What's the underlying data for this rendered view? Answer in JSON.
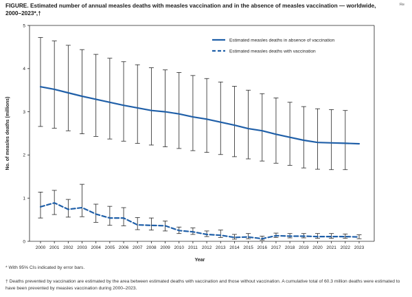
{
  "figure": {
    "title": "FIGURE. Estimated number of annual measles deaths with measles vaccination and in the absence of measles vaccination — worldwide, 2000–2023*,†",
    "corner_text": "Re",
    "footnote_1": "* With 95% CIs indicated by error bars.",
    "footnote_2": "† Deaths prevented by vaccination are estimated by the area between estimated deaths with vaccination and those without vaccination. A cumulative total of 60.3 million deaths were estimated to have been prevented by measles vaccination during 2000–2023."
  },
  "colors": {
    "series": "#1f5fa8",
    "axis": "#222222",
    "error_bar": "#222222"
  },
  "chart_data": {
    "type": "line",
    "title": "",
    "xlabel": "Year",
    "ylabel": "No. of measles deaths (millions)",
    "ylim": [
      0,
      5
    ],
    "yticks": [
      "0",
      "1",
      "2",
      "3",
      "4",
      "5"
    ],
    "grid": false,
    "legend_position": "top-right",
    "x": [
      "2000",
      "2001",
      "2002",
      "2003",
      "2004",
      "2005",
      "2006",
      "2007",
      "2008",
      "2009",
      "2010",
      "2011",
      "2012",
      "2013",
      "2014",
      "2015",
      "2016",
      "2017",
      "2018",
      "2019",
      "2020",
      "2021",
      "2022",
      "2023"
    ],
    "series": [
      {
        "name": "Estimated measles deaths in absence of vaccination",
        "style": "solid",
        "values": [
          3.58,
          3.52,
          3.44,
          3.36,
          3.29,
          3.22,
          3.15,
          3.09,
          3.03,
          3.0,
          2.95,
          2.88,
          2.83,
          2.76,
          2.69,
          2.61,
          2.56,
          2.48,
          2.41,
          2.34,
          2.29,
          2.28,
          2.27,
          2.26
        ],
        "lower": [
          2.66,
          2.62,
          2.56,
          2.49,
          2.43,
          2.37,
          2.32,
          2.27,
          2.23,
          2.19,
          2.15,
          2.1,
          2.06,
          2.01,
          1.96,
          1.91,
          1.86,
          1.81,
          1.76,
          1.7,
          1.67,
          1.66,
          1.66,
          null
        ],
        "upper": [
          4.72,
          4.64,
          4.54,
          4.44,
          4.33,
          4.24,
          4.16,
          4.09,
          4.02,
          3.97,
          3.91,
          3.84,
          3.77,
          3.69,
          3.59,
          3.5,
          3.42,
          3.32,
          3.22,
          3.12,
          3.07,
          3.05,
          3.03,
          null
        ]
      },
      {
        "name": "Estimated measles deaths with vaccination",
        "style": "dashed",
        "values": [
          0.8,
          0.89,
          0.74,
          0.78,
          0.63,
          0.54,
          0.54,
          0.38,
          0.37,
          0.36,
          0.25,
          0.22,
          0.16,
          0.14,
          0.09,
          0.1,
          0.06,
          0.13,
          0.12,
          0.12,
          0.11,
          0.11,
          0.11,
          0.1
        ],
        "lower": [
          0.54,
          0.62,
          0.56,
          0.57,
          0.44,
          0.37,
          0.36,
          0.27,
          0.26,
          0.24,
          0.18,
          0.16,
          0.11,
          0.09,
          0.05,
          0.06,
          0.03,
          0.09,
          0.08,
          0.08,
          0.07,
          0.07,
          0.07,
          0.06
        ],
        "upper": [
          1.14,
          1.18,
          0.97,
          1.32,
          0.86,
          0.81,
          0.78,
          0.55,
          0.54,
          0.47,
          0.33,
          0.31,
          0.24,
          0.26,
          0.16,
          0.18,
          0.12,
          0.19,
          0.18,
          0.18,
          0.18,
          0.18,
          0.17,
          0.15
        ]
      }
    ]
  }
}
